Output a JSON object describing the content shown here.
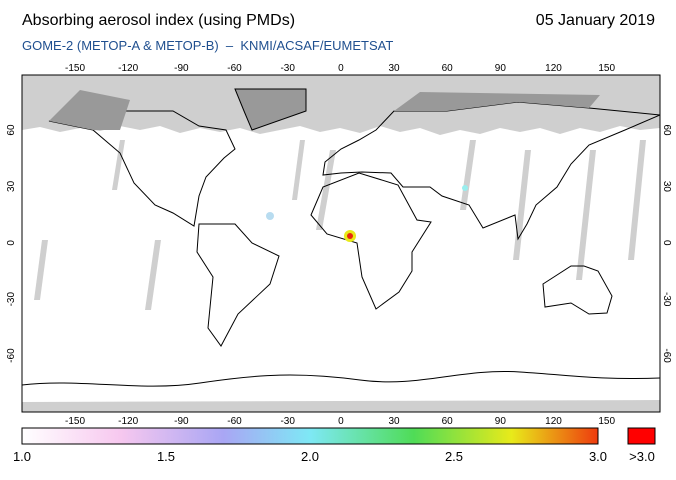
{
  "header": {
    "title": "Absorbing aerosol index (using PMDs)",
    "date": "05 January 2019",
    "subtitle": "GOME-2 (METOP-A & METOP-B)  –  KNMI/ACSAF/EUMETSAT"
  },
  "map": {
    "longitude_labels": [
      "-150",
      "-120",
      "-90",
      "-60",
      "-30",
      "0",
      "30",
      "60",
      "90",
      "120",
      "150"
    ],
    "latitude_labels": [
      "60",
      "30",
      "0",
      "-30",
      "-60"
    ]
  },
  "colorbar": {
    "labels": [
      "1.0",
      "1.5",
      "2.0",
      "2.5",
      "3.0"
    ],
    "overflow_label": ">3.0"
  }
}
